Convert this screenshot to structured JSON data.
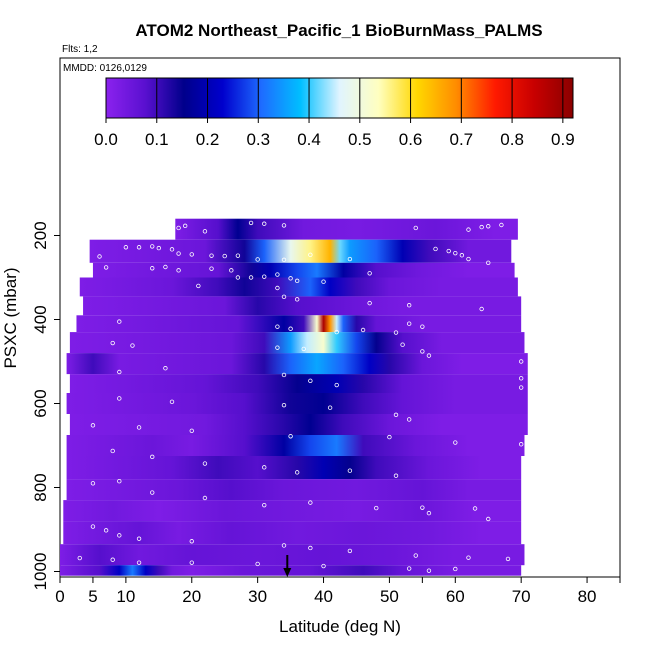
{
  "chart_data": {
    "type": "heatmap",
    "title": "ATOM2 Northeast_Pacific_1 BioBurnMass_PALMS",
    "subtitle": "Flts: 1,2",
    "annotation": "MMDD: 0126,0129",
    "xlabel": "Latitude (deg N)",
    "ylabel": "PSXC (mbar)",
    "xlim": [
      0,
      85
    ],
    "ylim": [
      1000,
      0
    ],
    "xticks": [
      0,
      5,
      10,
      20,
      30,
      40,
      50,
      60,
      70,
      80
    ],
    "xtick_labels": [
      "0",
      "5",
      "10",
      "20",
      "30",
      "40",
      "50",
      "60",
      "70",
      "80"
    ],
    "x_minor_ticks": [
      55,
      85
    ],
    "yticks": [
      200,
      400,
      600,
      800,
      1000
    ],
    "ytick_labels": [
      "200",
      "400",
      "600",
      "800",
      "1000"
    ],
    "colorbar": {
      "range": [
        0,
        0.92
      ],
      "ticks": [
        0.0,
        0.1,
        0.2,
        0.3,
        0.4,
        0.5,
        0.6,
        0.7,
        0.8,
        0.9
      ],
      "tick_labels": [
        "0.0",
        "0.1",
        "0.2",
        "0.3",
        "0.4",
        "0.5",
        "0.6",
        "0.7",
        "0.8",
        "0.9"
      ],
      "colors": [
        "#8b22ee",
        "#5a10d0",
        "#00008b",
        "#0000cd",
        "#1e6cff",
        "#00bfff",
        "#e0f4ff",
        "#ffffc0",
        "#ffd700",
        "#ff8c00",
        "#ff1a00",
        "#c80000",
        "#8b0000"
      ]
    },
    "arrow_latitude": 34.5,
    "rows": [
      {
        "p_top": 160,
        "p_bot": 210,
        "lat_min": 17.5,
        "lat_max": 69.5,
        "segments": [
          [
            17.5,
            0.02
          ],
          [
            24,
            0.08
          ],
          [
            27,
            0.16
          ],
          [
            30,
            0.1
          ],
          [
            37,
            0.04
          ],
          [
            45,
            0.03
          ],
          [
            57,
            0.05
          ],
          [
            66,
            0.02
          ]
        ]
      },
      {
        "p_top": 210,
        "p_bot": 265,
        "lat_min": 4.5,
        "lat_max": 68.5,
        "segments": [
          [
            4.5,
            0.02
          ],
          [
            22,
            0.05
          ],
          [
            28,
            0.14
          ],
          [
            31,
            0.3
          ],
          [
            35,
            0.48
          ],
          [
            38,
            0.56
          ],
          [
            41,
            0.65
          ],
          [
            42.5,
            0.42
          ],
          [
            44,
            0.35
          ],
          [
            48,
            0.3
          ],
          [
            52,
            0.2
          ],
          [
            56,
            0.1
          ],
          [
            62,
            0.04
          ]
        ]
      },
      {
        "p_top": 265,
        "p_bot": 300,
        "lat_min": 5,
        "lat_max": 69,
        "segments": [
          [
            5,
            0.02
          ],
          [
            24,
            0.06
          ],
          [
            29,
            0.14
          ],
          [
            32,
            0.2
          ],
          [
            36,
            0.28
          ],
          [
            39,
            0.32
          ],
          [
            43,
            0.18
          ],
          [
            48,
            0.08
          ],
          [
            55,
            0.04
          ],
          [
            62,
            0.02
          ]
        ]
      },
      {
        "p_top": 300,
        "p_bot": 345,
        "lat_min": 3,
        "lat_max": 69.5,
        "segments": [
          [
            3,
            0.02
          ],
          [
            17,
            0.05
          ],
          [
            24,
            0.1
          ],
          [
            28,
            0.14
          ],
          [
            33,
            0.1
          ],
          [
            38,
            0.3
          ],
          [
            41,
            0.22
          ],
          [
            45,
            0.1
          ],
          [
            50,
            0.05
          ],
          [
            58,
            0.03
          ]
        ]
      },
      {
        "p_top": 345,
        "p_bot": 390,
        "lat_min": 3.5,
        "lat_max": 70,
        "segments": [
          [
            3.5,
            0.02
          ],
          [
            25,
            0.05
          ],
          [
            30,
            0.12
          ],
          [
            36,
            0.08
          ],
          [
            45,
            0.05
          ],
          [
            52,
            0.03
          ]
        ]
      },
      {
        "p_top": 390,
        "p_bot": 430,
        "lat_min": 2.5,
        "lat_max": 70,
        "segments": [
          [
            2.5,
            0.02
          ],
          [
            27,
            0.06
          ],
          [
            34,
            0.18
          ],
          [
            37,
            0.1
          ],
          [
            39,
            0.52
          ],
          [
            40,
            0.88
          ],
          [
            41,
            0.68
          ],
          [
            42,
            0.45
          ],
          [
            43,
            0.3
          ],
          [
            45,
            0.12
          ],
          [
            48,
            0.06
          ],
          [
            55,
            0.03
          ]
        ]
      },
      {
        "p_top": 430,
        "p_bot": 480,
        "lat_min": 1.5,
        "lat_max": 70.5,
        "segments": [
          [
            1.5,
            0.02
          ],
          [
            26,
            0.05
          ],
          [
            31,
            0.1
          ],
          [
            35,
            0.35
          ],
          [
            37.5,
            0.45
          ],
          [
            40,
            0.52
          ],
          [
            42,
            0.4
          ],
          [
            45,
            0.28
          ],
          [
            48,
            0.15
          ],
          [
            52,
            0.08
          ],
          [
            58,
            0.03
          ]
        ]
      },
      {
        "p_top": 480,
        "p_bot": 530,
        "lat_min": 1,
        "lat_max": 71,
        "segments": [
          [
            1,
            0.02
          ],
          [
            5,
            0.1
          ],
          [
            9,
            0.03
          ],
          [
            26,
            0.05
          ],
          [
            31,
            0.12
          ],
          [
            35,
            0.3
          ],
          [
            39,
            0.36
          ],
          [
            43,
            0.3
          ],
          [
            47,
            0.22
          ],
          [
            50,
            0.12
          ],
          [
            55,
            0.05
          ],
          [
            61,
            0.02
          ]
        ]
      },
      {
        "p_top": 530,
        "p_bot": 575,
        "lat_min": 1.5,
        "lat_max": 71,
        "segments": [
          [
            1.5,
            0.02
          ],
          [
            22,
            0.06
          ],
          [
            30,
            0.1
          ],
          [
            36,
            0.15
          ],
          [
            42,
            0.2
          ],
          [
            46,
            0.12
          ],
          [
            52,
            0.06
          ],
          [
            60,
            0.03
          ]
        ]
      },
      {
        "p_top": 575,
        "p_bot": 625,
        "lat_min": 1,
        "lat_max": 71,
        "segments": [
          [
            1,
            0.02
          ],
          [
            20,
            0.05
          ],
          [
            28,
            0.08
          ],
          [
            35,
            0.14
          ],
          [
            40,
            0.16
          ],
          [
            46,
            0.1
          ],
          [
            52,
            0.06
          ],
          [
            60,
            0.03
          ]
        ]
      },
      {
        "p_top": 625,
        "p_bot": 675,
        "lat_min": 1.5,
        "lat_max": 71,
        "segments": [
          [
            1.5,
            0.02
          ],
          [
            22,
            0.04
          ],
          [
            28,
            0.08
          ],
          [
            34,
            0.12
          ],
          [
            38,
            0.16
          ],
          [
            43,
            0.1
          ],
          [
            50,
            0.05
          ],
          [
            58,
            0.02
          ]
        ]
      },
      {
        "p_top": 675,
        "p_bot": 725,
        "lat_min": 1,
        "lat_max": 70.5,
        "segments": [
          [
            1,
            0.02
          ],
          [
            14,
            0.05
          ],
          [
            20,
            0.03
          ],
          [
            28,
            0.08
          ],
          [
            34,
            0.18
          ],
          [
            38,
            0.28
          ],
          [
            42,
            0.32
          ],
          [
            46,
            0.1
          ],
          [
            54,
            0.05
          ],
          [
            62,
            0.02
          ]
        ]
      },
      {
        "p_top": 725,
        "p_bot": 780,
        "lat_min": 1,
        "lat_max": 70,
        "segments": [
          [
            1,
            0.02
          ],
          [
            17,
            0.06
          ],
          [
            24,
            0.1
          ],
          [
            30,
            0.08
          ],
          [
            36,
            0.12
          ],
          [
            40,
            0.2
          ],
          [
            44,
            0.15
          ],
          [
            48,
            0.1
          ],
          [
            56,
            0.05
          ],
          [
            64,
            0.02
          ]
        ]
      },
      {
        "p_top": 780,
        "p_bot": 830,
        "lat_min": 1,
        "lat_max": 70,
        "segments": [
          [
            1,
            0.02
          ],
          [
            18,
            0.05
          ],
          [
            26,
            0.08
          ],
          [
            34,
            0.05
          ],
          [
            45,
            0.04
          ],
          [
            55,
            0.06
          ],
          [
            62,
            0.03
          ]
        ]
      },
      {
        "p_top": 830,
        "p_bot": 880,
        "lat_min": 0.5,
        "lat_max": 70,
        "segments": [
          [
            0.5,
            0.02
          ],
          [
            8,
            0.04
          ],
          [
            15,
            0.02
          ],
          [
            25,
            0.05
          ],
          [
            35,
            0.04
          ],
          [
            45,
            0.03
          ],
          [
            55,
            0.05
          ],
          [
            63,
            0.02
          ]
        ]
      },
      {
        "p_top": 880,
        "p_bot": 935,
        "lat_min": 0.5,
        "lat_max": 70,
        "segments": [
          [
            0.5,
            0.02
          ],
          [
            6,
            0.04
          ],
          [
            12,
            0.06
          ],
          [
            18,
            0.03
          ],
          [
            26,
            0.06
          ],
          [
            36,
            0.04
          ],
          [
            46,
            0.05
          ],
          [
            56,
            0.04
          ],
          [
            64,
            0.02
          ]
        ]
      },
      {
        "p_top": 935,
        "p_bot": 985,
        "lat_min": 0,
        "lat_max": 70.5,
        "segments": [
          [
            0,
            0.02
          ],
          [
            6,
            0.08
          ],
          [
            12,
            0.04
          ],
          [
            20,
            0.06
          ],
          [
            30,
            0.05
          ],
          [
            40,
            0.06
          ],
          [
            50,
            0.05
          ],
          [
            60,
            0.03
          ]
        ]
      },
      {
        "p_top": 985,
        "p_bot": 1010,
        "lat_min": 0,
        "lat_max": 70,
        "segments": [
          [
            0,
            0.02
          ],
          [
            6,
            0.08
          ],
          [
            9,
            0.22
          ],
          [
            11,
            0.32
          ],
          [
            13,
            0.22
          ],
          [
            15,
            0.1
          ],
          [
            17,
            0.04
          ],
          [
            20,
            0.02
          ],
          [
            28,
            0.05
          ],
          [
            38,
            0.06
          ],
          [
            46,
            0.1
          ],
          [
            52,
            0.06
          ],
          [
            60,
            0.03
          ]
        ]
      }
    ],
    "sample_points": [
      [
        18,
        182
      ],
      [
        19,
        177
      ],
      [
        22,
        190
      ],
      [
        29,
        170
      ],
      [
        31,
        172
      ],
      [
        34,
        176
      ],
      [
        54,
        182
      ],
      [
        62,
        186
      ],
      [
        64,
        180
      ],
      [
        65,
        178
      ],
      [
        67,
        175
      ],
      [
        6,
        250
      ],
      [
        10,
        228
      ],
      [
        12,
        228
      ],
      [
        14,
        226
      ],
      [
        15,
        230
      ],
      [
        17,
        233
      ],
      [
        18,
        243
      ],
      [
        20,
        245
      ],
      [
        23,
        248
      ],
      [
        25,
        249
      ],
      [
        27,
        248
      ],
      [
        30,
        257
      ],
      [
        34,
        258
      ],
      [
        38,
        246
      ],
      [
        44,
        256
      ],
      [
        57,
        232
      ],
      [
        59,
        237
      ],
      [
        60,
        242
      ],
      [
        61,
        247
      ],
      [
        62,
        256
      ],
      [
        65,
        265
      ],
      [
        7,
        276
      ],
      [
        14,
        278
      ],
      [
        16,
        275
      ],
      [
        18,
        283
      ],
      [
        23,
        279
      ],
      [
        26,
        283
      ],
      [
        27,
        300
      ],
      [
        29,
        300
      ],
      [
        31,
        298
      ],
      [
        33,
        293
      ],
      [
        35,
        302
      ],
      [
        36,
        308
      ],
      [
        40,
        310
      ],
      [
        47,
        290
      ],
      [
        21,
        320
      ],
      [
        33,
        325
      ],
      [
        34,
        346
      ],
      [
        36,
        352
      ],
      [
        47,
        361
      ],
      [
        53,
        366
      ],
      [
        64,
        375
      ],
      [
        9,
        405
      ],
      [
        33,
        417
      ],
      [
        35,
        422
      ],
      [
        42,
        430
      ],
      [
        46,
        425
      ],
      [
        51,
        431
      ],
      [
        53,
        410
      ],
      [
        55,
        417
      ],
      [
        8,
        456
      ],
      [
        11,
        462
      ],
      [
        33,
        467
      ],
      [
        37,
        470
      ],
      [
        52,
        460
      ],
      [
        55,
        476
      ],
      [
        56,
        486
      ],
      [
        70,
        500
      ],
      [
        9,
        525
      ],
      [
        16,
        516
      ],
      [
        34,
        532
      ],
      [
        38,
        546
      ],
      [
        42,
        556
      ],
      [
        70,
        540
      ],
      [
        70,
        562
      ],
      [
        9,
        588
      ],
      [
        17,
        596
      ],
      [
        34,
        604
      ],
      [
        41,
        610
      ],
      [
        51,
        627
      ],
      [
        53,
        638
      ],
      [
        5,
        652
      ],
      [
        12,
        657
      ],
      [
        20,
        665
      ],
      [
        35,
        678
      ],
      [
        50,
        680
      ],
      [
        60,
        693
      ],
      [
        70,
        697
      ],
      [
        8,
        713
      ],
      [
        14,
        727
      ],
      [
        22,
        743
      ],
      [
        31,
        752
      ],
      [
        36,
        764
      ],
      [
        44,
        760
      ],
      [
        51,
        772
      ],
      [
        5,
        790
      ],
      [
        9,
        785
      ],
      [
        14,
        812
      ],
      [
        22,
        825
      ],
      [
        31,
        842
      ],
      [
        38,
        836
      ],
      [
        48,
        849
      ],
      [
        55,
        848
      ],
      [
        56,
        861
      ],
      [
        63,
        850
      ],
      [
        65,
        875
      ],
      [
        5,
        893
      ],
      [
        7,
        902
      ],
      [
        9,
        914
      ],
      [
        12,
        922
      ],
      [
        20,
        928
      ],
      [
        34,
        938
      ],
      [
        38,
        944
      ],
      [
        44,
        951
      ],
      [
        54,
        962
      ],
      [
        62,
        967
      ],
      [
        68,
        970
      ],
      [
        3,
        968
      ],
      [
        8,
        972
      ],
      [
        12,
        979
      ],
      [
        20,
        979
      ],
      [
        30,
        982
      ],
      [
        40,
        987
      ],
      [
        53,
        993
      ],
      [
        56,
        998
      ],
      [
        60,
        994
      ]
    ]
  }
}
